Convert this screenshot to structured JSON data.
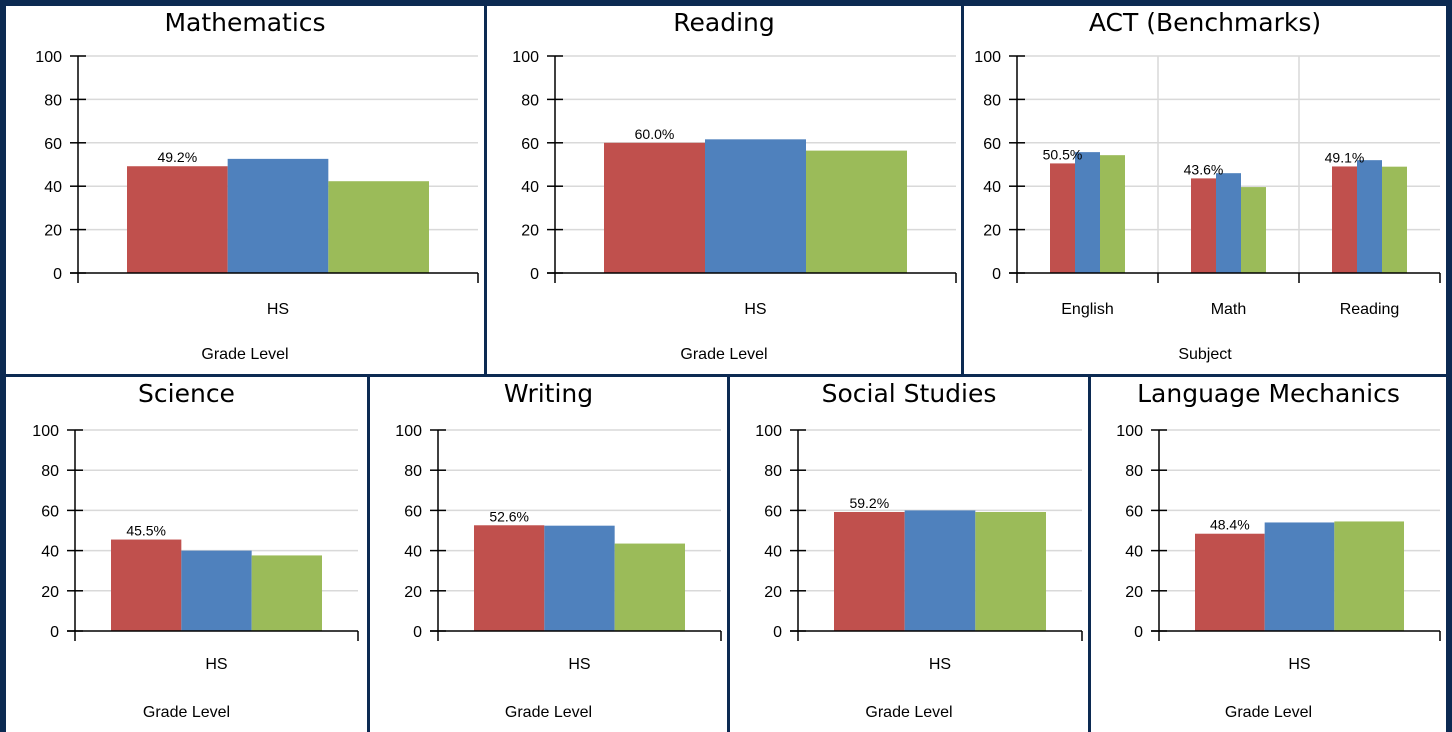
{
  "colors": {
    "series1": "#c0504d",
    "series2": "#4f81bd",
    "series3": "#9bbb59",
    "frame": "#0c2a52",
    "grid": "#d9d9d9"
  },
  "chart_data": [
    {
      "type": "bar",
      "title": "Mathematics",
      "xlabel": "Grade Level",
      "ylabel": "",
      "ylim": [
        0,
        100
      ],
      "yticks": [
        "0",
        "20",
        "40",
        "60",
        "80",
        "100"
      ],
      "grid": "horizontal",
      "categories": [
        "HS"
      ],
      "series": [
        {
          "values": [
            49.2
          ]
        },
        {
          "values": [
            52.6
          ]
        },
        {
          "values": [
            42.3
          ]
        }
      ],
      "data_labels": [
        [
          "49.2%"
        ]
      ]
    },
    {
      "type": "bar",
      "title": "Reading",
      "xlabel": "Grade Level",
      "ylabel": "",
      "ylim": [
        0,
        100
      ],
      "yticks": [
        "0",
        "20",
        "40",
        "60",
        "80",
        "100"
      ],
      "grid": "horizontal",
      "categories": [
        "HS"
      ],
      "series": [
        {
          "values": [
            60.0
          ]
        },
        {
          "values": [
            61.6
          ]
        },
        {
          "values": [
            56.4
          ]
        }
      ],
      "data_labels": [
        [
          "60.0%"
        ]
      ]
    },
    {
      "type": "bar",
      "title": "ACT (Benchmarks)",
      "xlabel": "Subject",
      "ylabel": "",
      "ylim": [
        0,
        100
      ],
      "yticks": [
        "0",
        "20",
        "40",
        "60",
        "80",
        "100"
      ],
      "grid": "horizontal and vertical",
      "categories": [
        "English",
        "Math",
        "Reading"
      ],
      "series": [
        {
          "values": [
            50.5,
            43.6,
            49.1
          ]
        },
        {
          "values": [
            55.7,
            46.0,
            52.0
          ]
        },
        {
          "values": [
            54.3,
            39.6,
            49.0
          ]
        }
      ],
      "data_labels": [
        [
          "50.5%",
          "43.6%",
          "49.1%"
        ]
      ]
    },
    {
      "type": "bar",
      "title": "Science",
      "xlabel": "Grade Level",
      "ylabel": "",
      "ylim": [
        0,
        100
      ],
      "yticks": [
        "0",
        "20",
        "40",
        "60",
        "80",
        "100"
      ],
      "grid": "horizontal",
      "categories": [
        "HS"
      ],
      "series": [
        {
          "values": [
            45.5
          ]
        },
        {
          "values": [
            40.0
          ]
        },
        {
          "values": [
            37.6
          ]
        }
      ],
      "data_labels": [
        [
          "45.5%"
        ]
      ]
    },
    {
      "type": "bar",
      "title": "Writing",
      "xlabel": "Grade Level",
      "ylabel": "",
      "ylim": [
        0,
        100
      ],
      "yticks": [
        "0",
        "20",
        "40",
        "60",
        "80",
        "100"
      ],
      "grid": "horizontal",
      "categories": [
        "HS"
      ],
      "series": [
        {
          "values": [
            52.6
          ]
        },
        {
          "values": [
            52.4
          ]
        },
        {
          "values": [
            43.5
          ]
        }
      ],
      "data_labels": [
        [
          "52.6%"
        ]
      ]
    },
    {
      "type": "bar",
      "title": "Social Studies",
      "xlabel": "Grade Level",
      "ylabel": "",
      "ylim": [
        0,
        100
      ],
      "yticks": [
        "0",
        "20",
        "40",
        "60",
        "80",
        "100"
      ],
      "grid": "horizontal",
      "categories": [
        "HS"
      ],
      "series": [
        {
          "values": [
            59.2
          ]
        },
        {
          "values": [
            60.0
          ]
        },
        {
          "values": [
            59.2
          ]
        }
      ],
      "data_labels": [
        [
          "59.2%"
        ]
      ]
    },
    {
      "type": "bar",
      "title": "Language Mechanics",
      "xlabel": "Grade Level",
      "ylabel": "",
      "ylim": [
        0,
        100
      ],
      "yticks": [
        "0",
        "20",
        "40",
        "60",
        "80",
        "100"
      ],
      "grid": "horizontal",
      "categories": [
        "HS"
      ],
      "series": [
        {
          "values": [
            48.4
          ]
        },
        {
          "values": [
            54.0
          ]
        },
        {
          "values": [
            54.5
          ]
        }
      ],
      "data_labels": [
        [
          "48.4%"
        ]
      ]
    }
  ]
}
